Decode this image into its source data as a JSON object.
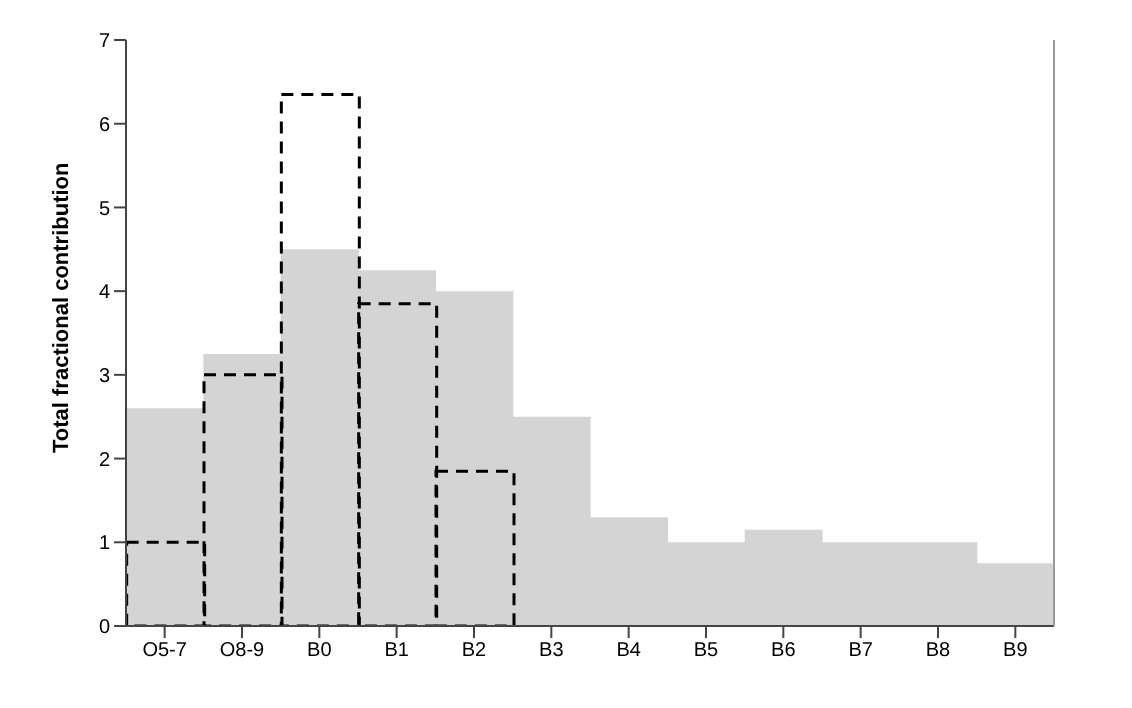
{
  "chart_data": {
    "type": "bar",
    "ylabel": "Total fractional contribution",
    "categories": [
      "O5-7",
      "O8-9",
      "B0",
      "B1",
      "B2",
      "B3",
      "B4",
      "B5",
      "B6",
      "B7",
      "B8",
      "B9"
    ],
    "series": [
      {
        "color": "#d4d4d4",
        "values": [
          2.6,
          3.25,
          4.5,
          4.25,
          4.0,
          2.5,
          1.3,
          1.0,
          1.15,
          1.0,
          1.0,
          0.75
        ]
      },
      {
        "color": "#000000",
        "line_style": "dashed",
        "values": [
          1.0,
          3.0,
          6.35,
          3.85,
          1.85,
          null,
          null,
          null,
          null,
          null,
          null,
          null
        ]
      }
    ],
    "ylim": [
      0,
      7
    ],
    "yticks": [
      0,
      1,
      2,
      3,
      4,
      5,
      6,
      7
    ],
    "grid": false
  }
}
